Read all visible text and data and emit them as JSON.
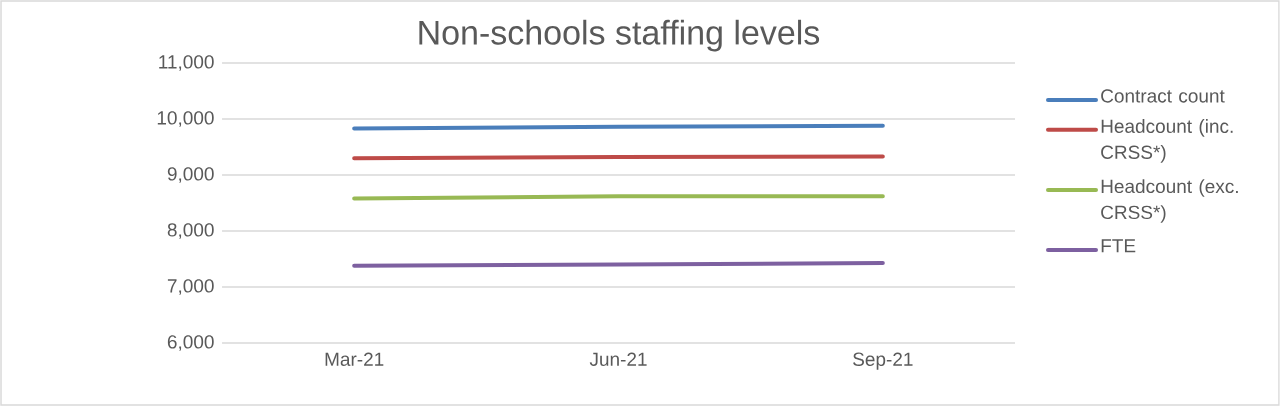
{
  "chart_data": {
    "type": "line",
    "title": "Non-schools staffing levels",
    "categories": [
      "Mar-21",
      "Jun-21",
      "Sep-21"
    ],
    "series": [
      {
        "name": "Contract count",
        "color": "#4a7ebb",
        "values": [
          9830,
          9860,
          9880
        ]
      },
      {
        "name": "Headcount (inc. CRSS*)",
        "color": "#be4b48",
        "values": [
          9300,
          9320,
          9330
        ]
      },
      {
        "name": "Headcount (exc. CRSS*)",
        "color": "#98b954",
        "values": [
          8580,
          8620,
          8620
        ]
      },
      {
        "name": "FTE",
        "color": "#7d60a0",
        "values": [
          7380,
          7400,
          7430
        ]
      }
    ],
    "ylim": [
      6000,
      11000
    ],
    "yticks": [
      {
        "value": 6000,
        "label": "6,000"
      },
      {
        "value": 7000,
        "label": "7,000"
      },
      {
        "value": 8000,
        "label": "8,000"
      },
      {
        "value": 9000,
        "label": "9,000"
      },
      {
        "value": 10000,
        "label": "10,000"
      },
      {
        "value": 11000,
        "label": "11,000"
      }
    ],
    "grid": "y",
    "legend": "right"
  }
}
